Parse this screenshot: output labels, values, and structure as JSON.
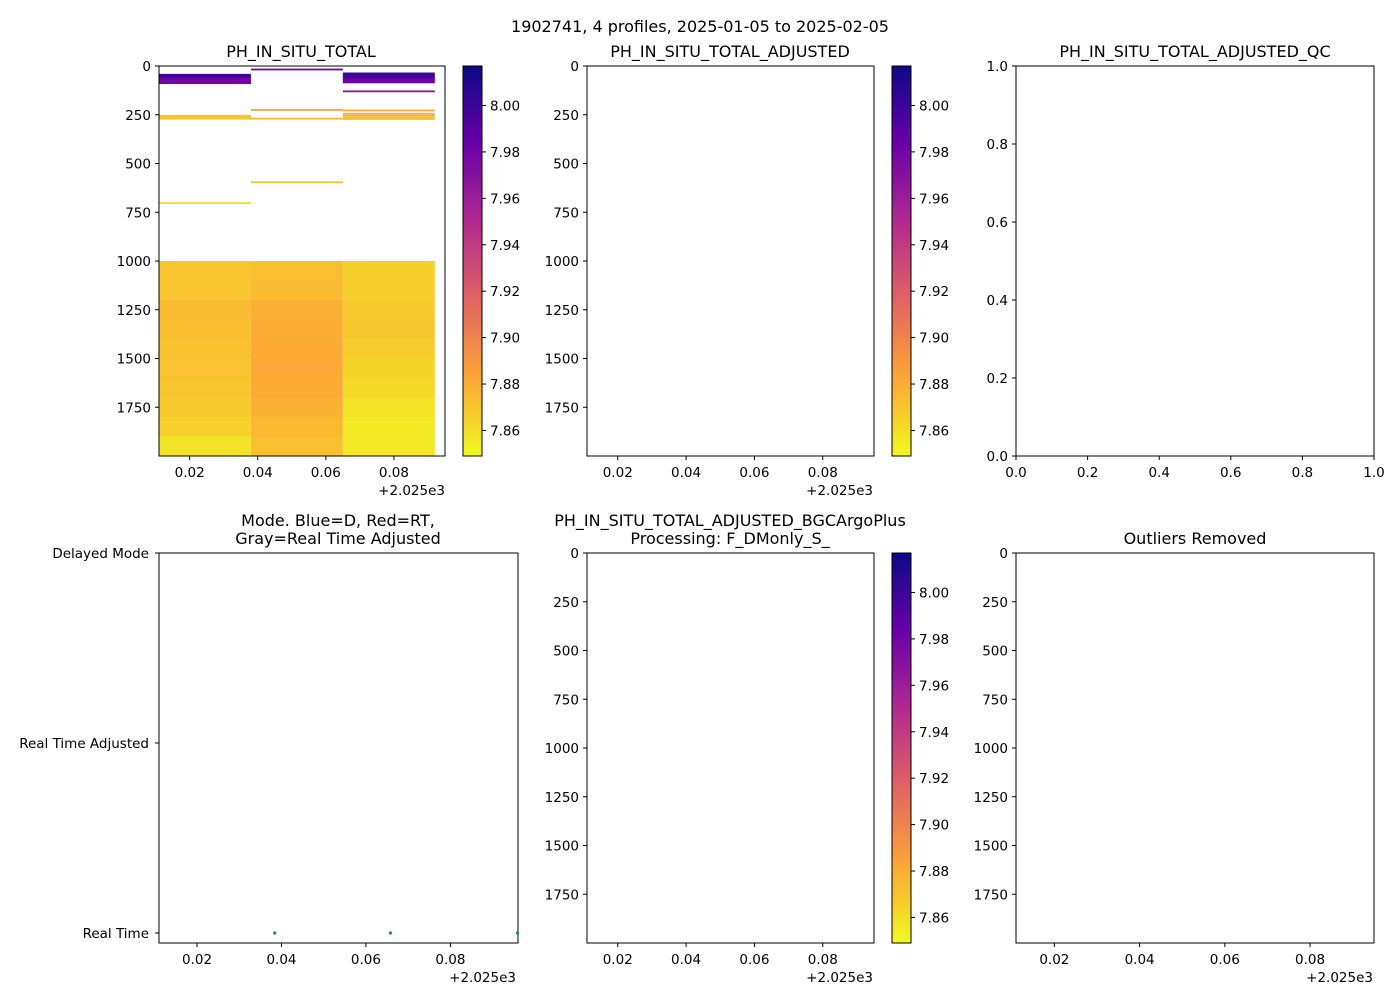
{
  "suptitle": "1902741, 4 profiles, 2025-01-05 to 2025-02-05",
  "colormap": {
    "name": "plasma_r",
    "vmin": 7.849,
    "vmax": 8.017,
    "ticks": [
      "7.86",
      "7.88",
      "7.90",
      "7.92",
      "7.94",
      "7.96",
      "7.98",
      "8.00"
    ],
    "stops": [
      "#f0f921",
      "#fca636",
      "#e16462",
      "#b12a90",
      "#6a00a8",
      "#0d0887"
    ]
  },
  "chart_data": [
    {
      "id": "raw",
      "type": "heatmap",
      "title": "PH_IN_SITU_TOTAL",
      "x_ticks": [
        "0.02",
        "0.04",
        "0.06",
        "0.08"
      ],
      "x_offset": "+2.025e3",
      "y_ticks": [
        "0",
        "250",
        "500",
        "750",
        "1000",
        "1250",
        "1500",
        "1750"
      ],
      "xlim": [
        2025.011,
        2025.095
      ],
      "ylim": [
        2000,
        0
      ],
      "columns": [
        {
          "x0": 2025.011,
          "x1": 2025.038
        },
        {
          "x0": 2025.038,
          "x1": 2025.065
        },
        {
          "x0": 2025.065,
          "x1": 2025.092
        }
      ],
      "thin_lines": [
        {
          "col": 0,
          "depths": [
            45,
            52,
            58
          ],
          "value": 8.0
        },
        {
          "col": 0,
          "depths": [
            65,
            72,
            80,
            88
          ],
          "value": 7.98
        },
        {
          "col": 0,
          "depths": [
            255,
            262,
            270
          ],
          "value": 7.87
        },
        {
          "col": 0,
          "depths": [
            703
          ],
          "value": 7.86
        },
        {
          "col": 1,
          "depths": [
            18
          ],
          "value": 7.98
        },
        {
          "col": 1,
          "depths": [
            225
          ],
          "value": 7.885
        },
        {
          "col": 1,
          "depths": [
            270
          ],
          "value": 7.875
        },
        {
          "col": 1,
          "depths": [
            596
          ],
          "value": 7.87
        },
        {
          "col": 2,
          "depths": [
            38,
            45,
            52,
            58
          ],
          "value": 8.0
        },
        {
          "col": 2,
          "depths": [
            64,
            70,
            78,
            84
          ],
          "value": 7.985
        },
        {
          "col": 2,
          "depths": [
            130
          ],
          "value": 7.97
        },
        {
          "col": 2,
          "depths": [
            228,
            245,
            255
          ],
          "value": 7.88
        },
        {
          "col": 2,
          "depths": [
            265,
            272
          ],
          "value": 7.87
        }
      ],
      "bins": [
        1000,
        1100,
        1200,
        1300,
        1400,
        1500,
        1600,
        1700,
        1800,
        1900,
        2000
      ],
      "values": [
        [
          7.87,
          7.87,
          7.874,
          7.873,
          7.872,
          7.871,
          7.87,
          7.868,
          7.865,
          7.858
        ],
        [
          7.872,
          7.874,
          7.878,
          7.88,
          7.881,
          7.882,
          7.881,
          7.878,
          7.875,
          7.872
        ],
        [
          7.866,
          7.866,
          7.868,
          7.869,
          7.867,
          7.864,
          7.862,
          7.858,
          7.856,
          7.856
        ]
      ]
    },
    {
      "id": "adjusted",
      "type": "heatmap",
      "title": "PH_IN_SITU_TOTAL_ADJUSTED",
      "x_ticks": [
        "0.02",
        "0.04",
        "0.06",
        "0.08"
      ],
      "x_offset": "+2.025e3",
      "y_ticks": [
        "0",
        "250",
        "500",
        "750",
        "1000",
        "1250",
        "1500",
        "1750"
      ]
    },
    {
      "id": "qc",
      "type": "scatter",
      "title": "PH_IN_SITU_TOTAL_ADJUSTED_QC",
      "x_ticks": [
        "0.0",
        "0.2",
        "0.4",
        "0.6",
        "0.8",
        "1.0"
      ],
      "y_ticks": [
        "0.0",
        "0.2",
        "0.4",
        "0.6",
        "0.8",
        "1.0"
      ],
      "xlim": [
        0,
        1
      ],
      "ylim": [
        0,
        1
      ]
    },
    {
      "id": "mode",
      "type": "scatter",
      "title_line1": "Mode. Blue=D, Red=RT,",
      "title_line2": "Gray=Real Time Adjusted",
      "x_ticks": [
        "0.02",
        "0.04",
        "0.06",
        "0.08"
      ],
      "x_offset": "+2.025e3",
      "y_categories": [
        "Delayed Mode",
        "Real Time Adjusted",
        "Real Time"
      ],
      "xlim": [
        2025.011,
        2025.096
      ],
      "points": [
        {
          "x": 2025.0384,
          "y": "Real Time"
        },
        {
          "x": 2025.0658,
          "y": "Real Time"
        },
        {
          "x": 2025.0959,
          "y": "Real Time"
        }
      ],
      "point_color": "#1f77b4"
    },
    {
      "id": "bgc",
      "type": "heatmap",
      "title_line1": "PH_IN_SITU_TOTAL_ADJUSTED_BGCArgoPlus",
      "title_line2": "Processing: F_DMonly_S_",
      "x_ticks": [
        "0.02",
        "0.04",
        "0.06",
        "0.08"
      ],
      "x_offset": "+2.025e3",
      "y_ticks": [
        "0",
        "250",
        "500",
        "750",
        "1000",
        "1250",
        "1500",
        "1750"
      ]
    },
    {
      "id": "outliers",
      "type": "heatmap",
      "title": "Outliers Removed",
      "x_ticks": [
        "0.02",
        "0.04",
        "0.06",
        "0.08"
      ],
      "x_offset": "+2.025e3",
      "y_ticks": [
        "0",
        "250",
        "500",
        "750",
        "1000",
        "1250",
        "1500",
        "1750"
      ]
    }
  ]
}
